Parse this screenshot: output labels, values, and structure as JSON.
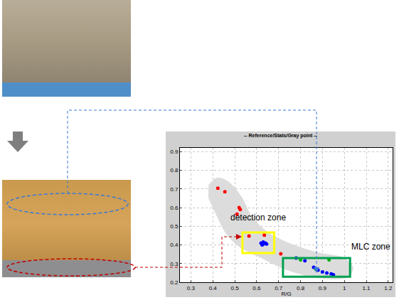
{
  "chart_data": {
    "type": "scatter",
    "title": "-- Reference/Stats/Gray point --",
    "x_label": "R/G",
    "xlim": [
      0.25,
      1.22
    ],
    "ylim": [
      0.2,
      0.92
    ],
    "xticks": [
      0.3,
      0.4,
      0.5,
      0.6,
      0.7,
      0.8,
      0.9,
      1,
      1.1,
      1.2
    ],
    "yticks": [
      0.2,
      0.3,
      0.4,
      0.5,
      0.6,
      0.7,
      0.8,
      0.9
    ],
    "grid": true,
    "series": [
      {
        "type": "area",
        "color": "#dcdcdc",
        "x": [
          0.38,
          0.42,
          0.47,
          0.53,
          0.58,
          0.65,
          0.75,
          0.88,
          1.0,
          1.04,
          1.02,
          0.9,
          0.75,
          0.62,
          0.52,
          0.46,
          0.42,
          0.38
        ],
        "y": [
          0.72,
          0.76,
          0.74,
          0.66,
          0.55,
          0.47,
          0.41,
          0.36,
          0.33,
          0.28,
          0.23,
          0.22,
          0.26,
          0.33,
          0.39,
          0.46,
          0.55,
          0.65
        ]
      },
      {
        "type": "scatter",
        "color": "#ff0000",
        "marker": "circle",
        "x": [
          0.423,
          0.455,
          0.52,
          0.525,
          0.51,
          0.565,
          0.635,
          0.71
        ],
        "y": [
          0.704,
          0.685,
          0.6,
          0.59,
          0.565,
          0.448,
          0.452,
          0.352
        ]
      },
      {
        "type": "scatter",
        "color": "#0000ff",
        "marker": "circle",
        "x": [
          0.62,
          0.63,
          0.64,
          0.645,
          0.63,
          0.625,
          0.78,
          0.82,
          0.86,
          0.88,
          0.9,
          0.92,
          0.94,
          0.95
        ],
        "y": [
          0.41,
          0.405,
          0.41,
          0.405,
          0.415,
          0.4,
          0.33,
          0.315,
          0.28,
          0.265,
          0.255,
          0.25,
          0.245,
          0.24
        ]
      },
      {
        "type": "scatter",
        "color": "#00b000",
        "marker": "circle",
        "x": [
          0.8,
          0.93,
          0.87
        ],
        "y": [
          0.32,
          0.32,
          0.27
        ]
      }
    ],
    "zones": [
      {
        "text": "detection zone",
        "color": "#ffff00",
        "x": [
          0.535,
          0.68
        ],
        "y": [
          0.356,
          0.467
        ],
        "label_at": [
          0.606,
          0.548
        ]
      },
      {
        "text": "MLC zone",
        "color": "#00a050",
        "x": [
          0.72,
          1.026
        ],
        "y": [
          0.23,
          0.33
        ],
        "label_at": [
          1.12,
          0.39
        ]
      }
    ]
  }
}
